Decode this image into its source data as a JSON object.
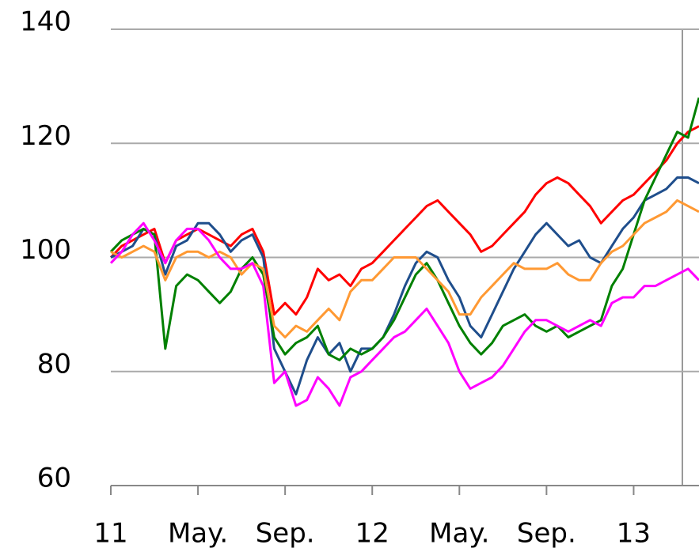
{
  "chart_data": {
    "type": "line",
    "categories": [
      "11",
      null,
      null,
      null,
      null,
      null,
      null,
      null,
      "May.",
      null,
      null,
      null,
      null,
      null,
      null,
      null,
      "Sep.",
      null,
      null,
      null,
      null,
      null,
      null,
      null,
      "12",
      null,
      null,
      null,
      null,
      null,
      null,
      null,
      "May.",
      null,
      null,
      null,
      null,
      null,
      null,
      null,
      "Sep.",
      null,
      null,
      null,
      null,
      null,
      null,
      null,
      "13",
      null,
      null,
      null,
      null,
      null,
      null
    ],
    "series": [
      {
        "color": "#ff0000",
        "values": [
          100,
          102,
          103,
          104,
          105,
          99,
          103,
          104,
          105,
          104,
          103,
          102,
          104,
          105,
          101,
          90,
          92,
          90,
          93,
          98,
          96,
          97,
          95,
          98,
          99,
          101,
          103,
          105,
          107,
          109,
          110,
          108,
          106,
          104,
          101,
          102,
          104,
          106,
          108,
          111,
          113,
          114,
          113,
          111,
          109,
          106,
          108,
          110,
          111,
          113,
          115,
          117,
          120,
          122,
          123
        ]
      },
      {
        "color": "#1f4e8c",
        "values": [
          100,
          101,
          102,
          105,
          104,
          97,
          102,
          103,
          106,
          106,
          104,
          101,
          103,
          104,
          100,
          84,
          80,
          76,
          82,
          86,
          83,
          85,
          80,
          84,
          84,
          86,
          90,
          95,
          99,
          101,
          100,
          96,
          93,
          88,
          86,
          90,
          94,
          98,
          101,
          104,
          106,
          104,
          102,
          103,
          100,
          99,
          102,
          105,
          107,
          110,
          111,
          112,
          114,
          114,
          113
        ]
      },
      {
        "color": "#008000",
        "values": [
          101,
          103,
          104,
          105,
          104,
          84,
          95,
          97,
          96,
          94,
          92,
          94,
          98,
          100,
          97,
          86,
          83,
          85,
          86,
          88,
          83,
          82,
          84,
          83,
          84,
          86,
          89,
          93,
          97,
          99,
          96,
          92,
          88,
          85,
          83,
          85,
          88,
          89,
          90,
          88,
          87,
          88,
          86,
          87,
          88,
          89,
          95,
          98,
          104,
          110,
          114,
          118,
          122,
          121,
          128
        ]
      },
      {
        "color": "#ff9933",
        "values": [
          101,
          100,
          101,
          102,
          101,
          96,
          100,
          101,
          101,
          100,
          101,
          100,
          97,
          99,
          98,
          88,
          86,
          88,
          87,
          89,
          91,
          89,
          94,
          96,
          96,
          98,
          100,
          100,
          100,
          98,
          96,
          94,
          90,
          90,
          93,
          95,
          97,
          99,
          98,
          98,
          98,
          99,
          97,
          96,
          96,
          99,
          101,
          102,
          104,
          106,
          107,
          108,
          110,
          109,
          108
        ]
      },
      {
        "color": "#ff00ff",
        "values": [
          99,
          101,
          104,
          106,
          103,
          99,
          103,
          105,
          105,
          103,
          100,
          98,
          98,
          99,
          95,
          78,
          80,
          74,
          75,
          79,
          77,
          74,
          79,
          80,
          82,
          84,
          86,
          87,
          89,
          91,
          88,
          85,
          80,
          77,
          78,
          79,
          81,
          84,
          87,
          89,
          89,
          88,
          87,
          88,
          89,
          88,
          92,
          93,
          93,
          95,
          95,
          96,
          97,
          98,
          96
        ]
      }
    ],
    "ylim": [
      60,
      140
    ],
    "yticks": [
      60,
      80,
      100,
      120,
      140
    ],
    "grid": true
  }
}
